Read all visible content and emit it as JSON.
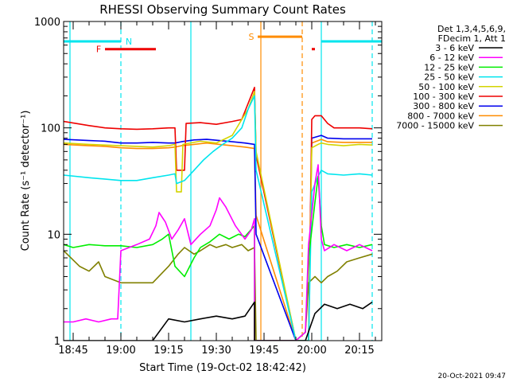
{
  "chart_data": {
    "type": "line",
    "title": "RHESSI Observing Summary Count Rates",
    "xlabel": "Start Time (19-Oct-02 18:42:42)",
    "ylabel": "Count Rate (s⁻¹ detector⁻¹)",
    "yscale": "log",
    "ylim": [
      1,
      1000
    ],
    "xlim_minutes": [
      -3,
      97
    ],
    "x_unit": "minutes after 18:45 UT",
    "y_ticks": [
      {
        "label": "1",
        "value": 1
      },
      {
        "label": "10",
        "value": 10
      },
      {
        "label": "100",
        "value": 100
      },
      {
        "label": "1000",
        "value": 1000
      }
    ],
    "x_ticks": [
      {
        "label": "18:45",
        "value": 0
      },
      {
        "label": "19:00",
        "value": 15
      },
      {
        "label": "19:15",
        "value": 30
      },
      {
        "label": "19:30",
        "value": 45
      },
      {
        "label": "19:45",
        "value": 60
      },
      {
        "label": "20:00",
        "value": 75
      },
      {
        "label": "20:15",
        "value": 90
      }
    ],
    "legend": {
      "placement": "right",
      "header": [
        "Det 1,3,4,5,6,9,",
        "FDecim 1, Att 1"
      ],
      "entries": [
        {
          "label": "3 - 6 keV",
          "color": "#000000"
        },
        {
          "label": "6 - 12 keV",
          "color": "#ff00ff"
        },
        {
          "label": "12 - 25 keV",
          "color": "#00ee00"
        },
        {
          "label": "25 - 50 keV",
          "color": "#00e5ee"
        },
        {
          "label": "50 - 100 keV",
          "color": "#d4d400"
        },
        {
          "label": "100 - 300 keV",
          "color": "#ee0000"
        },
        {
          "label": "300 - 800 keV",
          "color": "#0000ee"
        },
        {
          "label": "800 - 7000 keV",
          "color": "#ff8c00"
        },
        {
          "label": "7000 - 15000 keV",
          "color": "#808000"
        }
      ]
    },
    "flag_bars": [
      {
        "label": "N",
        "color": "#00e5ee",
        "y": 650,
        "segments": [
          [
            -3,
            15
          ],
          [
            78,
            97
          ]
        ]
      },
      {
        "label": "F",
        "color": "#ee0000",
        "y": 550,
        "segments": [
          [
            10,
            26
          ],
          [
            75,
            76
          ]
        ]
      },
      {
        "label": "S",
        "color": "#ff8c00",
        "y": 720,
        "segments": [
          [
            58,
            72
          ]
        ]
      }
    ],
    "vlines": [
      {
        "x": -1,
        "color": "#00e5ee",
        "style": "solid"
      },
      {
        "x": 15,
        "color": "#00e5ee",
        "style": "dashed"
      },
      {
        "x": 37,
        "color": "#00e5ee",
        "style": "solid"
      },
      {
        "x": 59,
        "color": "#ff8c00",
        "style": "solid"
      },
      {
        "x": 72,
        "color": "#ff8c00",
        "style": "dashed"
      },
      {
        "x": 78,
        "color": "#00e5ee",
        "style": "solid"
      },
      {
        "x": 94,
        "color": "#00e5ee",
        "style": "dashed"
      }
    ],
    "series": [
      {
        "name": "3 - 6 keV",
        "color": "#000000",
        "x": [
          -3,
          14,
          14,
          25,
          30,
          35,
          40,
          45,
          50,
          54,
          57,
          57,
          70,
          73,
          76,
          79,
          83,
          87,
          91,
          94
        ],
        "y": [
          1,
          1,
          1,
          1,
          1.6,
          1.5,
          1.6,
          1.7,
          1.6,
          1.7,
          2.3,
          1,
          1,
          1,
          1.8,
          2.2,
          2,
          2.2,
          2,
          2.3
        ]
      },
      {
        "name": "6 - 12 keV",
        "color": "#ff00ff",
        "x": [
          -3,
          0,
          4,
          8,
          12,
          14,
          15,
          20,
          24,
          26,
          27,
          29,
          31,
          33,
          35,
          37,
          40,
          43,
          45,
          46,
          48,
          51,
          54,
          56,
          57,
          57,
          70,
          73,
          74,
          76,
          77,
          78,
          79,
          82,
          86,
          90,
          94
        ],
        "y": [
          1.5,
          1.5,
          1.6,
          1.5,
          1.6,
          1.6,
          7,
          8,
          9,
          12,
          16,
          13,
          9,
          11,
          14,
          8,
          10,
          12,
          17,
          22,
          18,
          12,
          9,
          11,
          14,
          1,
          1,
          1.2,
          8,
          30,
          45,
          9,
          7,
          8,
          7,
          8,
          7
        ]
      },
      {
        "name": "12 - 25 keV",
        "color": "#00ee00",
        "x": [
          -3,
          0,
          5,
          10,
          15,
          20,
          25,
          28,
          30,
          32,
          35,
          38,
          40,
          43,
          46,
          49,
          52,
          54,
          57,
          57,
          70,
          73,
          74,
          76,
          77,
          78,
          79,
          82,
          86,
          90,
          94
        ],
        "y": [
          8,
          7.5,
          8,
          7.8,
          7.8,
          7.5,
          8,
          9,
          10,
          5,
          4,
          6,
          7.5,
          8.5,
          10,
          9,
          10,
          9.5,
          12,
          1,
          1,
          1.2,
          6,
          20,
          35,
          12,
          8,
          7.5,
          8,
          7.5,
          8
        ]
      },
      {
        "name": "25 - 50 keV",
        "color": "#00e5ee",
        "x": [
          -3,
          5,
          15,
          20,
          25,
          30,
          32,
          32.5,
          35,
          38,
          41,
          44,
          47,
          50,
          53,
          55,
          57,
          57.5,
          70,
          74,
          75,
          77,
          78,
          80,
          85,
          90,
          94
        ],
        "y": [
          36,
          34,
          32,
          32,
          34,
          36,
          37,
          30,
          32,
          40,
          50,
          60,
          70,
          80,
          100,
          150,
          200,
          40,
          1,
          1,
          25,
          35,
          40,
          37,
          36,
          37,
          36
        ]
      },
      {
        "name": "50 - 100 keV",
        "color": "#d4d400",
        "x": [
          -3,
          5,
          15,
          20,
          25,
          30,
          32,
          32.5,
          34,
          34.5,
          40,
          45,
          50,
          53,
          55,
          57,
          57.5,
          70,
          74,
          75,
          77,
          78,
          80,
          85,
          90,
          94
        ],
        "y": [
          72,
          70,
          68,
          67,
          66,
          68,
          70,
          25,
          25,
          70,
          75,
          72,
          85,
          120,
          150,
          220,
          60,
          1,
          1,
          65,
          70,
          72,
          70,
          68,
          70,
          69
        ]
      },
      {
        "name": "100 - 300 keV",
        "color": "#ee0000",
        "x": [
          -3,
          5,
          10,
          15,
          20,
          25,
          30,
          32,
          32.5,
          35,
          35.5,
          40,
          45,
          50,
          53,
          55,
          57,
          57.5,
          70,
          74,
          75,
          76,
          78,
          80,
          82,
          85,
          90,
          94
        ],
        "y": [
          115,
          105,
          100,
          98,
          97,
          98,
          100,
          100,
          40,
          40,
          110,
          112,
          108,
          115,
          120,
          170,
          240,
          55,
          1,
          1,
          120,
          130,
          130,
          110,
          100,
          100,
          100,
          98
        ]
      },
      {
        "name": "300 - 800 keV",
        "color": "#0000ee",
        "x": [
          -3,
          5,
          10,
          15,
          20,
          25,
          30,
          32,
          34,
          38,
          42,
          46,
          50,
          54,
          57,
          57.5,
          70,
          74,
          75,
          78,
          80,
          85,
          90,
          94
        ],
        "y": [
          78,
          76,
          75,
          72,
          72,
          73,
          72,
          72,
          74,
          77,
          78,
          76,
          74,
          72,
          70,
          10,
          1,
          1,
          80,
          85,
          80,
          79,
          79,
          79
        ]
      },
      {
        "name": "800 - 7000 keV",
        "color": "#ff8c00",
        "x": [
          -3,
          5,
          10,
          15,
          20,
          25,
          30,
          32,
          34,
          38,
          42,
          46,
          50,
          54,
          57,
          57.5,
          70,
          74,
          75,
          78,
          80,
          85,
          90,
          94
        ],
        "y": [
          70,
          68,
          67,
          65,
          64,
          64,
          65,
          66,
          68,
          70,
          72,
          70,
          68,
          66,
          64,
          15,
          1,
          1,
          72,
          78,
          74,
          73,
          73,
          73
        ]
      },
      {
        "name": "7000 - 15000 keV",
        "color": "#808000",
        "x": [
          -3,
          2,
          5,
          8,
          10,
          15,
          20,
          25,
          30,
          33,
          35,
          38,
          40,
          43,
          45,
          48,
          50,
          53,
          55,
          57,
          57.5,
          70,
          73,
          74,
          76,
          78,
          80,
          83,
          86,
          90,
          94
        ],
        "y": [
          7,
          5,
          4.5,
          5.5,
          4,
          3.5,
          3.5,
          3.5,
          5,
          6.5,
          7.5,
          6.5,
          7,
          8,
          7.5,
          8,
          7.5,
          8,
          7,
          7.5,
          1,
          1,
          1.2,
          3.5,
          4,
          3.5,
          4,
          4.5,
          5.5,
          6,
          6.5
        ]
      }
    ]
  },
  "footer": {
    "timestamp": "20-Oct-2021 09:47"
  }
}
